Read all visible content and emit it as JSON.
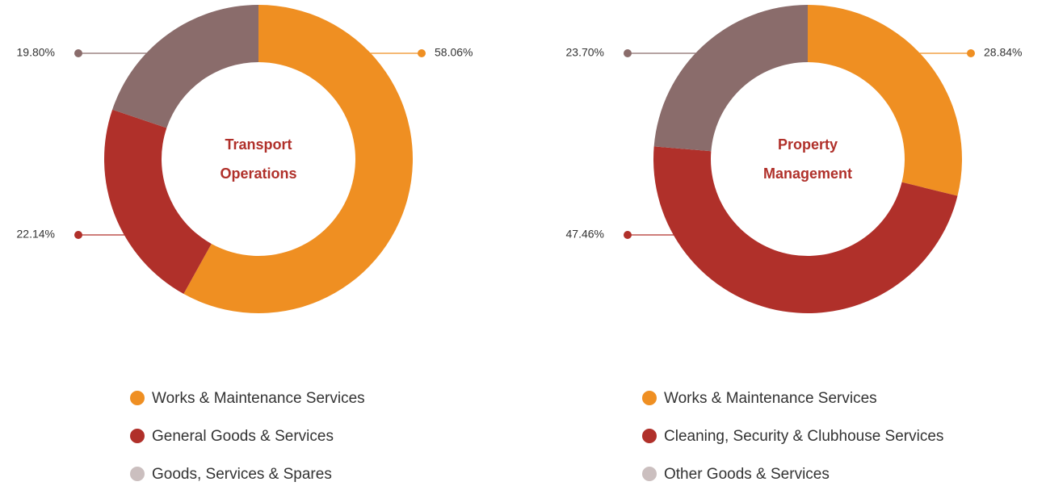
{
  "chart_data": [
    {
      "type": "donut",
      "title": "Transport Operations",
      "categories": [
        "Works & Maintenance Services",
        "General Goods & Services",
        "Goods, Services & Spares"
      ],
      "values": [
        58.06,
        22.14,
        19.8
      ],
      "value_labels": [
        "58.06%",
        "22.14%",
        "19.80%"
      ],
      "colors": [
        "#ef8f22",
        "#b0302a",
        "#8a6c6b"
      ],
      "legend_colors": [
        "#ef8f22",
        "#b0302a",
        "#cbbfbf"
      ]
    },
    {
      "type": "donut",
      "title": "Property Management",
      "categories": [
        "Works & Maintenance Services",
        "Cleaning, Security & Clubhouse Services",
        "Other Goods & Services"
      ],
      "values": [
        28.84,
        47.46,
        23.7
      ],
      "value_labels": [
        "28.84%",
        "47.46%",
        "23.70%"
      ],
      "colors": [
        "#ef8f22",
        "#b0302a",
        "#8a6c6b"
      ],
      "legend_colors": [
        "#ef8f22",
        "#b0302a",
        "#cbbfbf"
      ]
    }
  ]
}
